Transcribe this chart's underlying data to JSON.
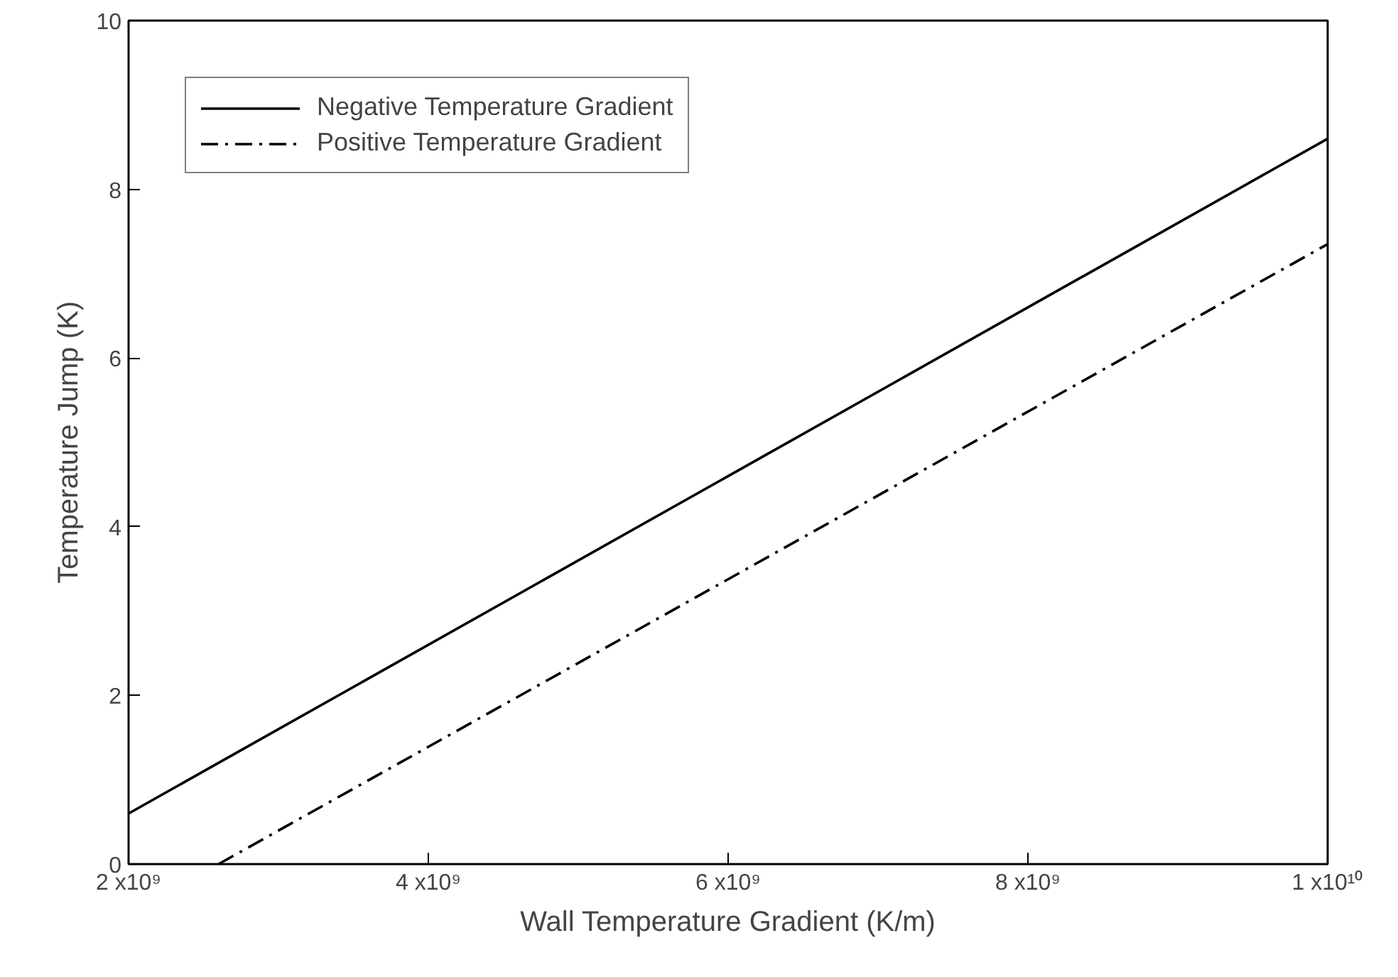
{
  "chart_data": {
    "type": "line",
    "xlabel": "Wall Temperature Gradient (K/m)",
    "ylabel": "Temperature Jump (K)",
    "xlim": [
      2000000000,
      10000000000
    ],
    "xticks": [
      {
        "value": 2000000000,
        "label": "2 x10⁹"
      },
      {
        "value": 4000000000,
        "label": "4 x10⁹"
      },
      {
        "value": 6000000000,
        "label": "6 x10⁹"
      },
      {
        "value": 8000000000,
        "label": "8 x10⁹"
      },
      {
        "value": 10000000000,
        "label": "1 x10¹⁰"
      }
    ],
    "ylim": [
      0,
      10
    ],
    "yticks": [
      0,
      2,
      4,
      6,
      8,
      10
    ],
    "series": [
      {
        "name": "Negative Temperature Gradient",
        "color": "#000000",
        "line_style": "solid",
        "x": [
          2000000000,
          10000000000
        ],
        "values": [
          0.6,
          8.6
        ]
      },
      {
        "name": "Positive Temperature Gradient",
        "color": "#000000",
        "line_style": "dashdot",
        "x": [
          2600000000,
          10000000000
        ],
        "values": [
          0,
          7.35
        ]
      }
    ],
    "grid": false,
    "legend": "top left",
    "marker": "none"
  }
}
